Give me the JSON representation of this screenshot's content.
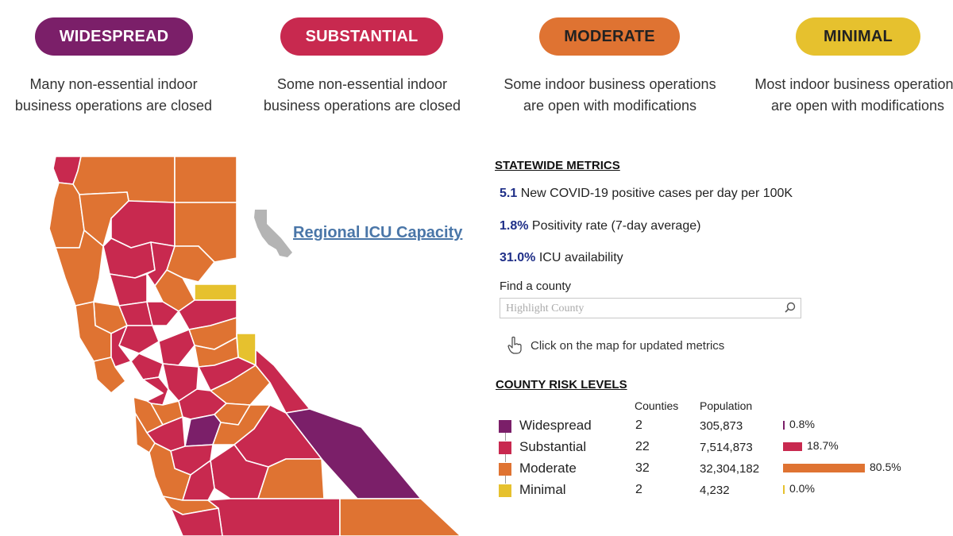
{
  "tiers": [
    {
      "label": "WIDESPREAD",
      "description_line1": "Many non-essential indoor",
      "description_line2": "business operations are closed",
      "color": "#7b1f69"
    },
    {
      "label": "SUBSTANTIAL",
      "description_line1": "Some non-essential indoor",
      "description_line2": "business operations are closed",
      "color": "#c8294f"
    },
    {
      "label": "MODERATE",
      "description_line1": "Some indoor business operations",
      "description_line2": "are open with modifications",
      "color": "#df7332"
    },
    {
      "label": "MINIMAL",
      "description_line1": "Most indoor business operations",
      "description_line2": "are open with modifications",
      "color": "#e6c12e"
    }
  ],
  "icu_link": "Regional ICU Capacity",
  "statewide": {
    "heading": "STATEWIDE METRICS",
    "metrics": [
      {
        "value": "5.1",
        "text": "New COVID-19 positive cases per day per 100K"
      },
      {
        "value": "1.8%",
        "text": "Positivity rate (7-day average)"
      },
      {
        "value": "31.0%",
        "text": "ICU availability"
      }
    ]
  },
  "search": {
    "label": "Find a county",
    "placeholder": "Highlight County"
  },
  "hint": "Click on the map for updated metrics",
  "risk": {
    "heading": "COUNTY RISK LEVELS",
    "col_counties": "Counties",
    "col_population": "Population",
    "rows": [
      {
        "label": "Widespread",
        "counties": "2",
        "population": "305,873",
        "pct": "0.8%",
        "share": 0.8,
        "color": "#7b1f69"
      },
      {
        "label": "Substantial",
        "counties": "22",
        "population": "7,514,873",
        "pct": "18.7%",
        "share": 18.7,
        "color": "#c8294f"
      },
      {
        "label": "Moderate",
        "counties": "32",
        "population": "32,304,182",
        "pct": "80.5%",
        "share": 80.5,
        "color": "#df7332"
      },
      {
        "label": "Minimal",
        "counties": "2",
        "population": "4,232",
        "pct": "0.0%",
        "share": 0.0,
        "color": "#e6c12e"
      }
    ]
  }
}
